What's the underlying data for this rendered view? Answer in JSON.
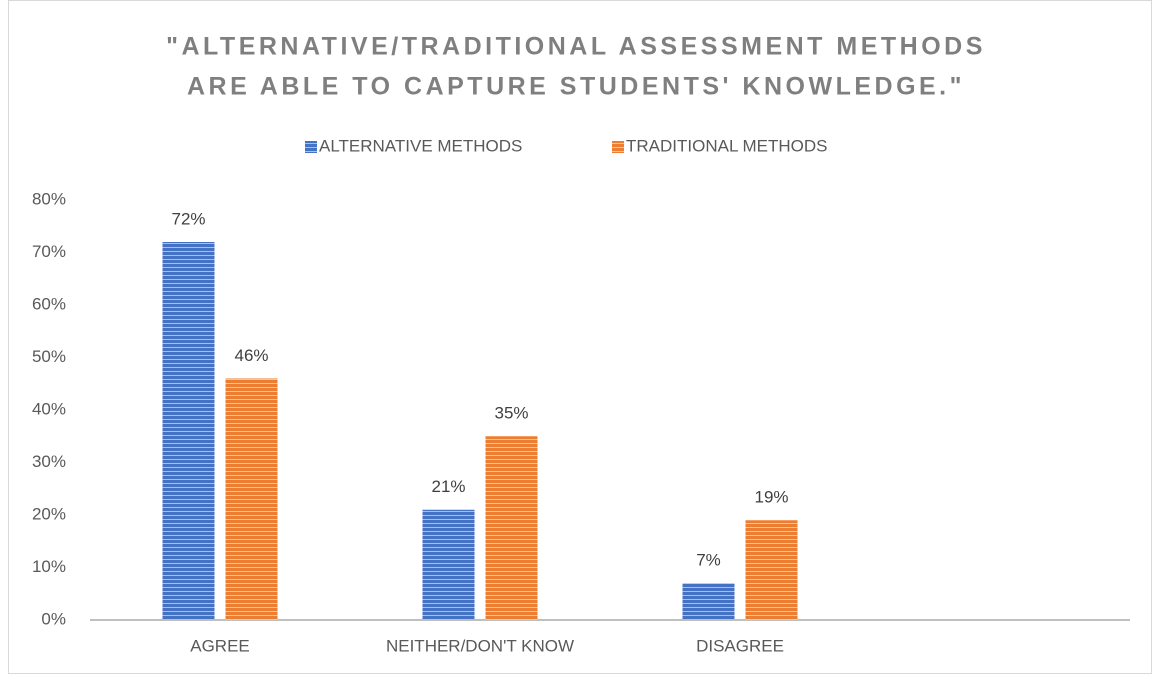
{
  "chart_data": {
    "type": "bar",
    "title": [
      "\"ALTERNATIVE/TRADITIONAL ASSESSMENT METHODS",
      "ARE ABLE TO CAPTURE STUDENTS' KNOWLEDGE.\""
    ],
    "categories": [
      "AGREE",
      "NEITHER/DON'T KNOW",
      "DISAGREE",
      null
    ],
    "series": [
      {
        "name": "ALTERNATIVE METHODS",
        "color": "#4472c4",
        "values": [
          72,
          21,
          7,
          null
        ],
        "value_labels": [
          "72%",
          "21%",
          "7%",
          null
        ]
      },
      {
        "name": "TRADITIONAL METHODS",
        "color": "#ed7d31",
        "values": [
          46,
          35,
          19,
          null
        ],
        "value_labels": [
          "46%",
          "35%",
          "19%",
          null
        ]
      }
    ],
    "ylim": [
      0,
      80
    ],
    "yticks": [
      {
        "value": 0,
        "label": "0%"
      },
      {
        "value": 10,
        "label": "10%"
      },
      {
        "value": 20,
        "label": "20%"
      },
      {
        "value": 30,
        "label": "30%"
      },
      {
        "value": 40,
        "label": "40%"
      },
      {
        "value": 50,
        "label": "50%"
      },
      {
        "value": 60,
        "label": "60%"
      },
      {
        "value": 70,
        "label": "70%"
      },
      {
        "value": 80,
        "label": "80%"
      }
    ],
    "legend": "top",
    "grid": false
  }
}
